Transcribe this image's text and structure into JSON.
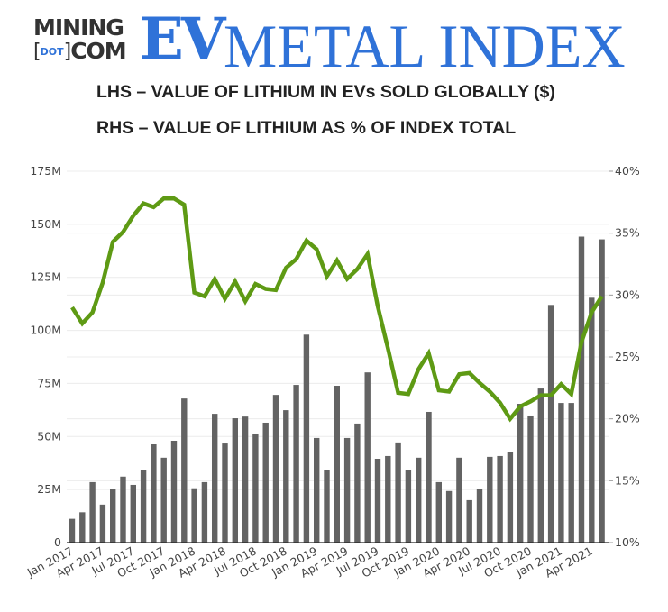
{
  "logo": {
    "line1": "MINING",
    "dot": "DOT",
    "line2": "COM",
    "ev": "EV",
    "index": "METAL INDEX"
  },
  "titles": {
    "lhs": "LHS – VALUE OF LITHIUM IN EVs SOLD GLOBALLY ($)",
    "rhs": "RHS – VALUE OF LITHIUM AS % OF INDEX TOTAL"
  },
  "chart_data": {
    "type": "bar+line",
    "x_tick_labels": [
      "Jan 2017",
      "Apr 2017",
      "Jul 2017",
      "Oct 2017",
      "Jan 2018",
      "Apr 2018",
      "Jul 2018",
      "Oct 2018",
      "Jan 2019",
      "Apr 2019",
      "Jul 2019",
      "Oct 2019",
      "Jan 2020",
      "Apr 2020",
      "Jul 2020",
      "Oct 2020",
      "Jan 2021",
      "Apr 2021"
    ],
    "left_axis": {
      "ylim": [
        0,
        175
      ],
      "ticks": [
        "0",
        "25M",
        "50M",
        "75M",
        "100M",
        "125M",
        "150M",
        "175M"
      ],
      "unit": "M"
    },
    "right_axis": {
      "ylim": [
        10,
        40
      ],
      "ticks": [
        "10%",
        "15%",
        "20%",
        "25%",
        "30%",
        "35%",
        "40%"
      ],
      "unit": "%"
    },
    "series": [
      {
        "type": "bar",
        "axis": "left",
        "color": "#636363",
        "values": [
          11.2,
          14.3,
          28.5,
          17.9,
          25.1,
          31.1,
          27.2,
          34.0,
          46.3,
          40.0,
          48.0,
          67.9,
          25.6,
          28.5,
          60.7,
          46.7,
          58.6,
          59.4,
          51.4,
          56.5,
          69.6,
          62.4,
          74.3,
          98.0,
          49.3,
          34.0,
          73.9,
          49.3,
          56.1,
          80.2,
          39.5,
          40.8,
          47.2,
          34.0,
          40.0,
          61.6,
          28.5,
          24.3,
          40.0,
          20.0,
          25.1,
          40.4,
          40.8,
          42.5,
          65.4,
          59.9,
          72.6,
          112.0,
          65.8,
          65.8,
          144.2,
          115.4,
          142.9
        ]
      },
      {
        "type": "line",
        "axis": "right",
        "color": "#5e9a14",
        "values": [
          29.0,
          27.7,
          28.6,
          31.0,
          34.3,
          35.1,
          36.4,
          37.4,
          37.1,
          37.8,
          37.8,
          37.3,
          30.2,
          29.9,
          31.3,
          29.7,
          31.1,
          29.5,
          30.9,
          30.5,
          30.4,
          32.2,
          32.9,
          34.4,
          33.7,
          31.5,
          32.8,
          31.3,
          32.1,
          33.3,
          29.1,
          25.7,
          22.1,
          22.0,
          24.0,
          25.3,
          22.3,
          22.2,
          23.6,
          23.7,
          22.9,
          22.2,
          21.3,
          20.0,
          21.0,
          21.4,
          21.9,
          21.9,
          22.8,
          22.0,
          26.2,
          28.6,
          29.9
        ]
      }
    ],
    "grid": true,
    "legend": "none"
  }
}
